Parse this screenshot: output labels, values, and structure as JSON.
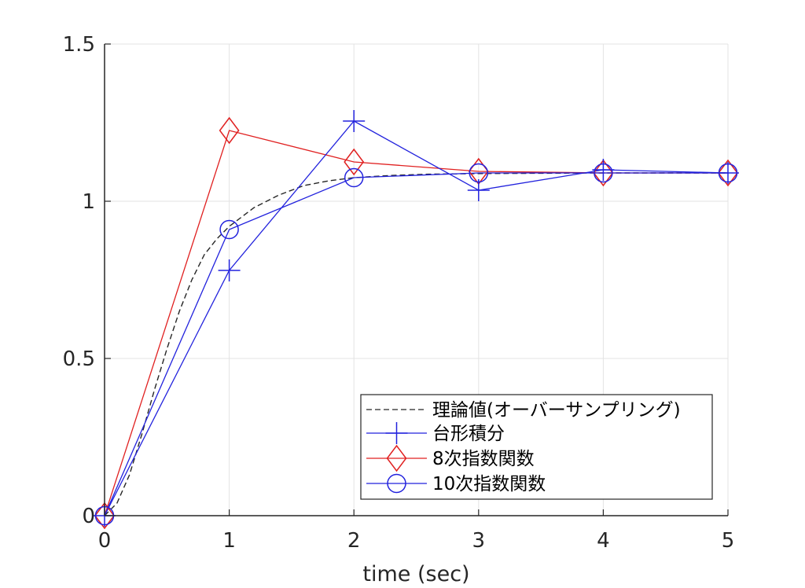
{
  "chart_data": {
    "type": "line",
    "xlabel": "time (sec)",
    "ylabel": "",
    "xlim": [
      0,
      5
    ],
    "ylim": [
      0,
      1.5
    ],
    "xticks": [
      "0",
      "1",
      "2",
      "3",
      "4",
      "5"
    ],
    "yticks": [
      "0",
      "0.5",
      "1",
      "1.5"
    ],
    "grid": true,
    "legend_position": "bottom-right",
    "colors": {
      "black": "#262626",
      "blue": "#2222dd",
      "red": "#e02020",
      "grid": "#e3e3e3"
    },
    "series": [
      {
        "name": "理論値(オーバーサンプリング)",
        "style": "dashed",
        "color": "#262626",
        "marker": "none",
        "x": [
          0,
          0.1,
          0.2,
          0.3,
          0.4,
          0.5,
          0.6,
          0.7,
          0.8,
          0.9,
          1.0,
          1.2,
          1.4,
          1.6,
          1.8,
          2.0,
          2.3,
          2.6,
          3.0,
          3.5,
          4.0,
          4.5,
          5.0
        ],
        "y": [
          0,
          0.04,
          0.13,
          0.26,
          0.4,
          0.53,
          0.65,
          0.75,
          0.83,
          0.88,
          0.92,
          0.98,
          1.02,
          1.05,
          1.065,
          1.075,
          1.082,
          1.086,
          1.088,
          1.089,
          1.09,
          1.09,
          1.09
        ]
      },
      {
        "name": "台形積分",
        "style": "solid",
        "color": "#2222dd",
        "marker": "plus",
        "x": [
          0,
          1,
          2,
          3,
          4,
          5
        ],
        "y": [
          0,
          0.78,
          1.255,
          1.035,
          1.1,
          1.09
        ]
      },
      {
        "name": "8次指数関数",
        "style": "solid",
        "color": "#e02020",
        "marker": "diamond",
        "x": [
          0,
          1,
          2,
          3,
          4,
          5
        ],
        "y": [
          0,
          1.225,
          1.125,
          1.095,
          1.09,
          1.09
        ]
      },
      {
        "name": "10次指数関数",
        "style": "solid",
        "color": "#2222dd",
        "marker": "circle",
        "x": [
          0,
          1,
          2,
          3,
          4,
          5
        ],
        "y": [
          0,
          0.91,
          1.075,
          1.09,
          1.09,
          1.09
        ]
      }
    ]
  }
}
